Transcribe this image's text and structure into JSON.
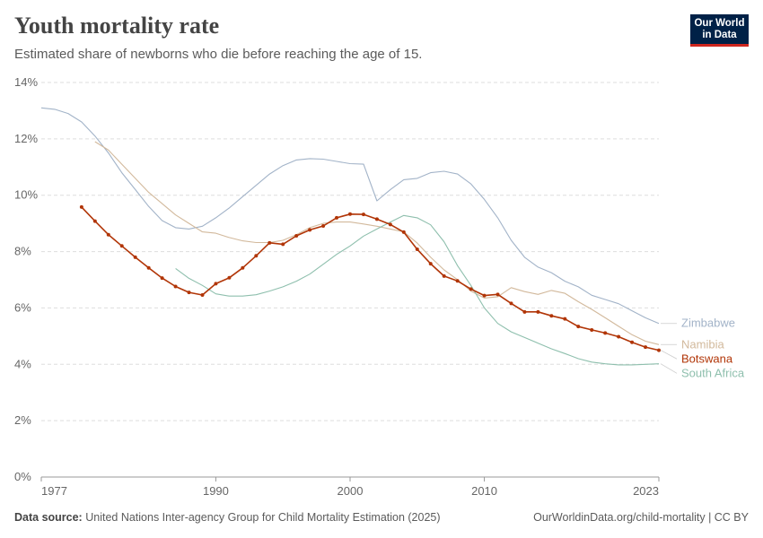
{
  "header": {
    "title": "Youth mortality rate",
    "subtitle": "Estimated share of newborns who die before reaching the age of 15."
  },
  "logo": {
    "line1": "Our World",
    "line2": "in Data",
    "bg_color": "#002147",
    "accent_color": "#ce261e"
  },
  "footer": {
    "source_label": "Data source:",
    "source_text": "United Nations Inter-agency Group for Child Mortality Estimation (2025)",
    "link_text": "OurWorldinData.org/child-mortality | CC BY"
  },
  "chart_data": {
    "type": "line",
    "x_ticks": [
      "1977",
      "1990",
      "2000",
      "2010",
      "2023"
    ],
    "y_ticks": [
      "0%",
      "2%",
      "4%",
      "6%",
      "8%",
      "10%",
      "12%",
      "14%"
    ],
    "xlim": [
      1977,
      2023
    ],
    "ylim": [
      0,
      14
    ],
    "grid": true,
    "legend": "right end labels",
    "series": [
      {
        "name": "Zimbabwe",
        "color": "#a2b3c8",
        "markers": false,
        "x": [
          1977,
          1978,
          1979,
          1980,
          1981,
          1982,
          1983,
          1984,
          1985,
          1986,
          1987,
          1988,
          1989,
          1990,
          1991,
          1992,
          1993,
          1994,
          1995,
          1996,
          1997,
          1998,
          1999,
          2000,
          2001,
          2002,
          2003,
          2004,
          2005,
          2006,
          2007,
          2008,
          2009,
          2010,
          2011,
          2012,
          2013,
          2014,
          2015,
          2016,
          2017,
          2018,
          2019,
          2020,
          2021,
          2022,
          2023
        ],
        "y": [
          13.1,
          13.05,
          12.9,
          12.6,
          12.1,
          11.5,
          10.8,
          10.2,
          9.6,
          9.1,
          8.85,
          8.8,
          8.9,
          9.2,
          9.55,
          9.95,
          10.35,
          10.75,
          11.05,
          11.25,
          11.3,
          11.28,
          11.2,
          11.12,
          11.1,
          9.8,
          10.2,
          10.55,
          10.6,
          10.8,
          10.85,
          10.75,
          10.4,
          9.85,
          9.2,
          8.4,
          7.8,
          7.45,
          7.25,
          6.95,
          6.75,
          6.45,
          6.3,
          6.15,
          5.9,
          5.65,
          5.45
        ]
      },
      {
        "name": "Namibia",
        "color": "#d2b99c",
        "markers": false,
        "x": [
          1981,
          1982,
          1983,
          1984,
          1985,
          1986,
          1987,
          1988,
          1989,
          1990,
          1991,
          1992,
          1993,
          1994,
          1995,
          1996,
          1997,
          1998,
          1999,
          2000,
          2001,
          2002,
          2003,
          2004,
          2005,
          2006,
          2007,
          2008,
          2009,
          2010,
          2011,
          2012,
          2013,
          2014,
          2015,
          2016,
          2017,
          2018,
          2019,
          2020,
          2021,
          2022,
          2023
        ],
        "y": [
          11.9,
          11.6,
          11.1,
          10.6,
          10.1,
          9.7,
          9.3,
          9.0,
          8.7,
          8.65,
          8.5,
          8.38,
          8.32,
          8.32,
          8.4,
          8.6,
          8.85,
          9.0,
          9.05,
          9.05,
          8.98,
          8.9,
          8.8,
          8.7,
          8.3,
          7.8,
          7.35,
          7.0,
          6.6,
          6.35,
          6.4,
          6.72,
          6.58,
          6.48,
          6.62,
          6.52,
          6.22,
          5.95,
          5.65,
          5.35,
          5.05,
          4.82,
          4.7
        ]
      },
      {
        "name": "South Africa",
        "color": "#8ebfad",
        "markers": false,
        "x": [
          1987,
          1988,
          1989,
          1990,
          1991,
          1992,
          1993,
          1994,
          1995,
          1996,
          1997,
          1998,
          1999,
          2000,
          2001,
          2002,
          2003,
          2004,
          2005,
          2006,
          2007,
          2008,
          2009,
          2010,
          2011,
          2012,
          2013,
          2014,
          2015,
          2016,
          2017,
          2018,
          2019,
          2020,
          2021,
          2022,
          2023
        ],
        "y": [
          7.4,
          7.05,
          6.8,
          6.5,
          6.42,
          6.42,
          6.47,
          6.6,
          6.75,
          6.95,
          7.2,
          7.55,
          7.9,
          8.2,
          8.55,
          8.8,
          9.05,
          9.28,
          9.2,
          8.95,
          8.35,
          7.5,
          6.8,
          6.0,
          5.45,
          5.15,
          4.95,
          4.75,
          4.55,
          4.38,
          4.2,
          4.08,
          4.02,
          3.98,
          3.98,
          4.0,
          4.02
        ]
      },
      {
        "name": "Botswana",
        "color": "#b13507",
        "markers": true,
        "x": [
          1980,
          1981,
          1982,
          1983,
          1984,
          1985,
          1986,
          1987,
          1988,
          1989,
          1990,
          1991,
          1992,
          1993,
          1994,
          1995,
          1996,
          1997,
          1998,
          1999,
          2000,
          2001,
          2002,
          2003,
          2004,
          2005,
          2006,
          2007,
          2008,
          2009,
          2010,
          2011,
          2012,
          2013,
          2014,
          2015,
          2016,
          2017,
          2018,
          2019,
          2020,
          2021,
          2022,
          2023
        ],
        "y": [
          9.58,
          9.08,
          8.6,
          8.2,
          7.8,
          7.42,
          7.06,
          6.76,
          6.55,
          6.46,
          6.86,
          7.07,
          7.42,
          7.85,
          8.31,
          8.26,
          8.56,
          8.77,
          8.91,
          9.2,
          9.33,
          9.32,
          9.15,
          8.96,
          8.69,
          8.08,
          7.57,
          7.13,
          6.96,
          6.67,
          6.44,
          6.48,
          6.16,
          5.86,
          5.86,
          5.72,
          5.61,
          5.34,
          5.22,
          5.11,
          4.98,
          4.78,
          4.61,
          4.5
        ]
      }
    ]
  }
}
